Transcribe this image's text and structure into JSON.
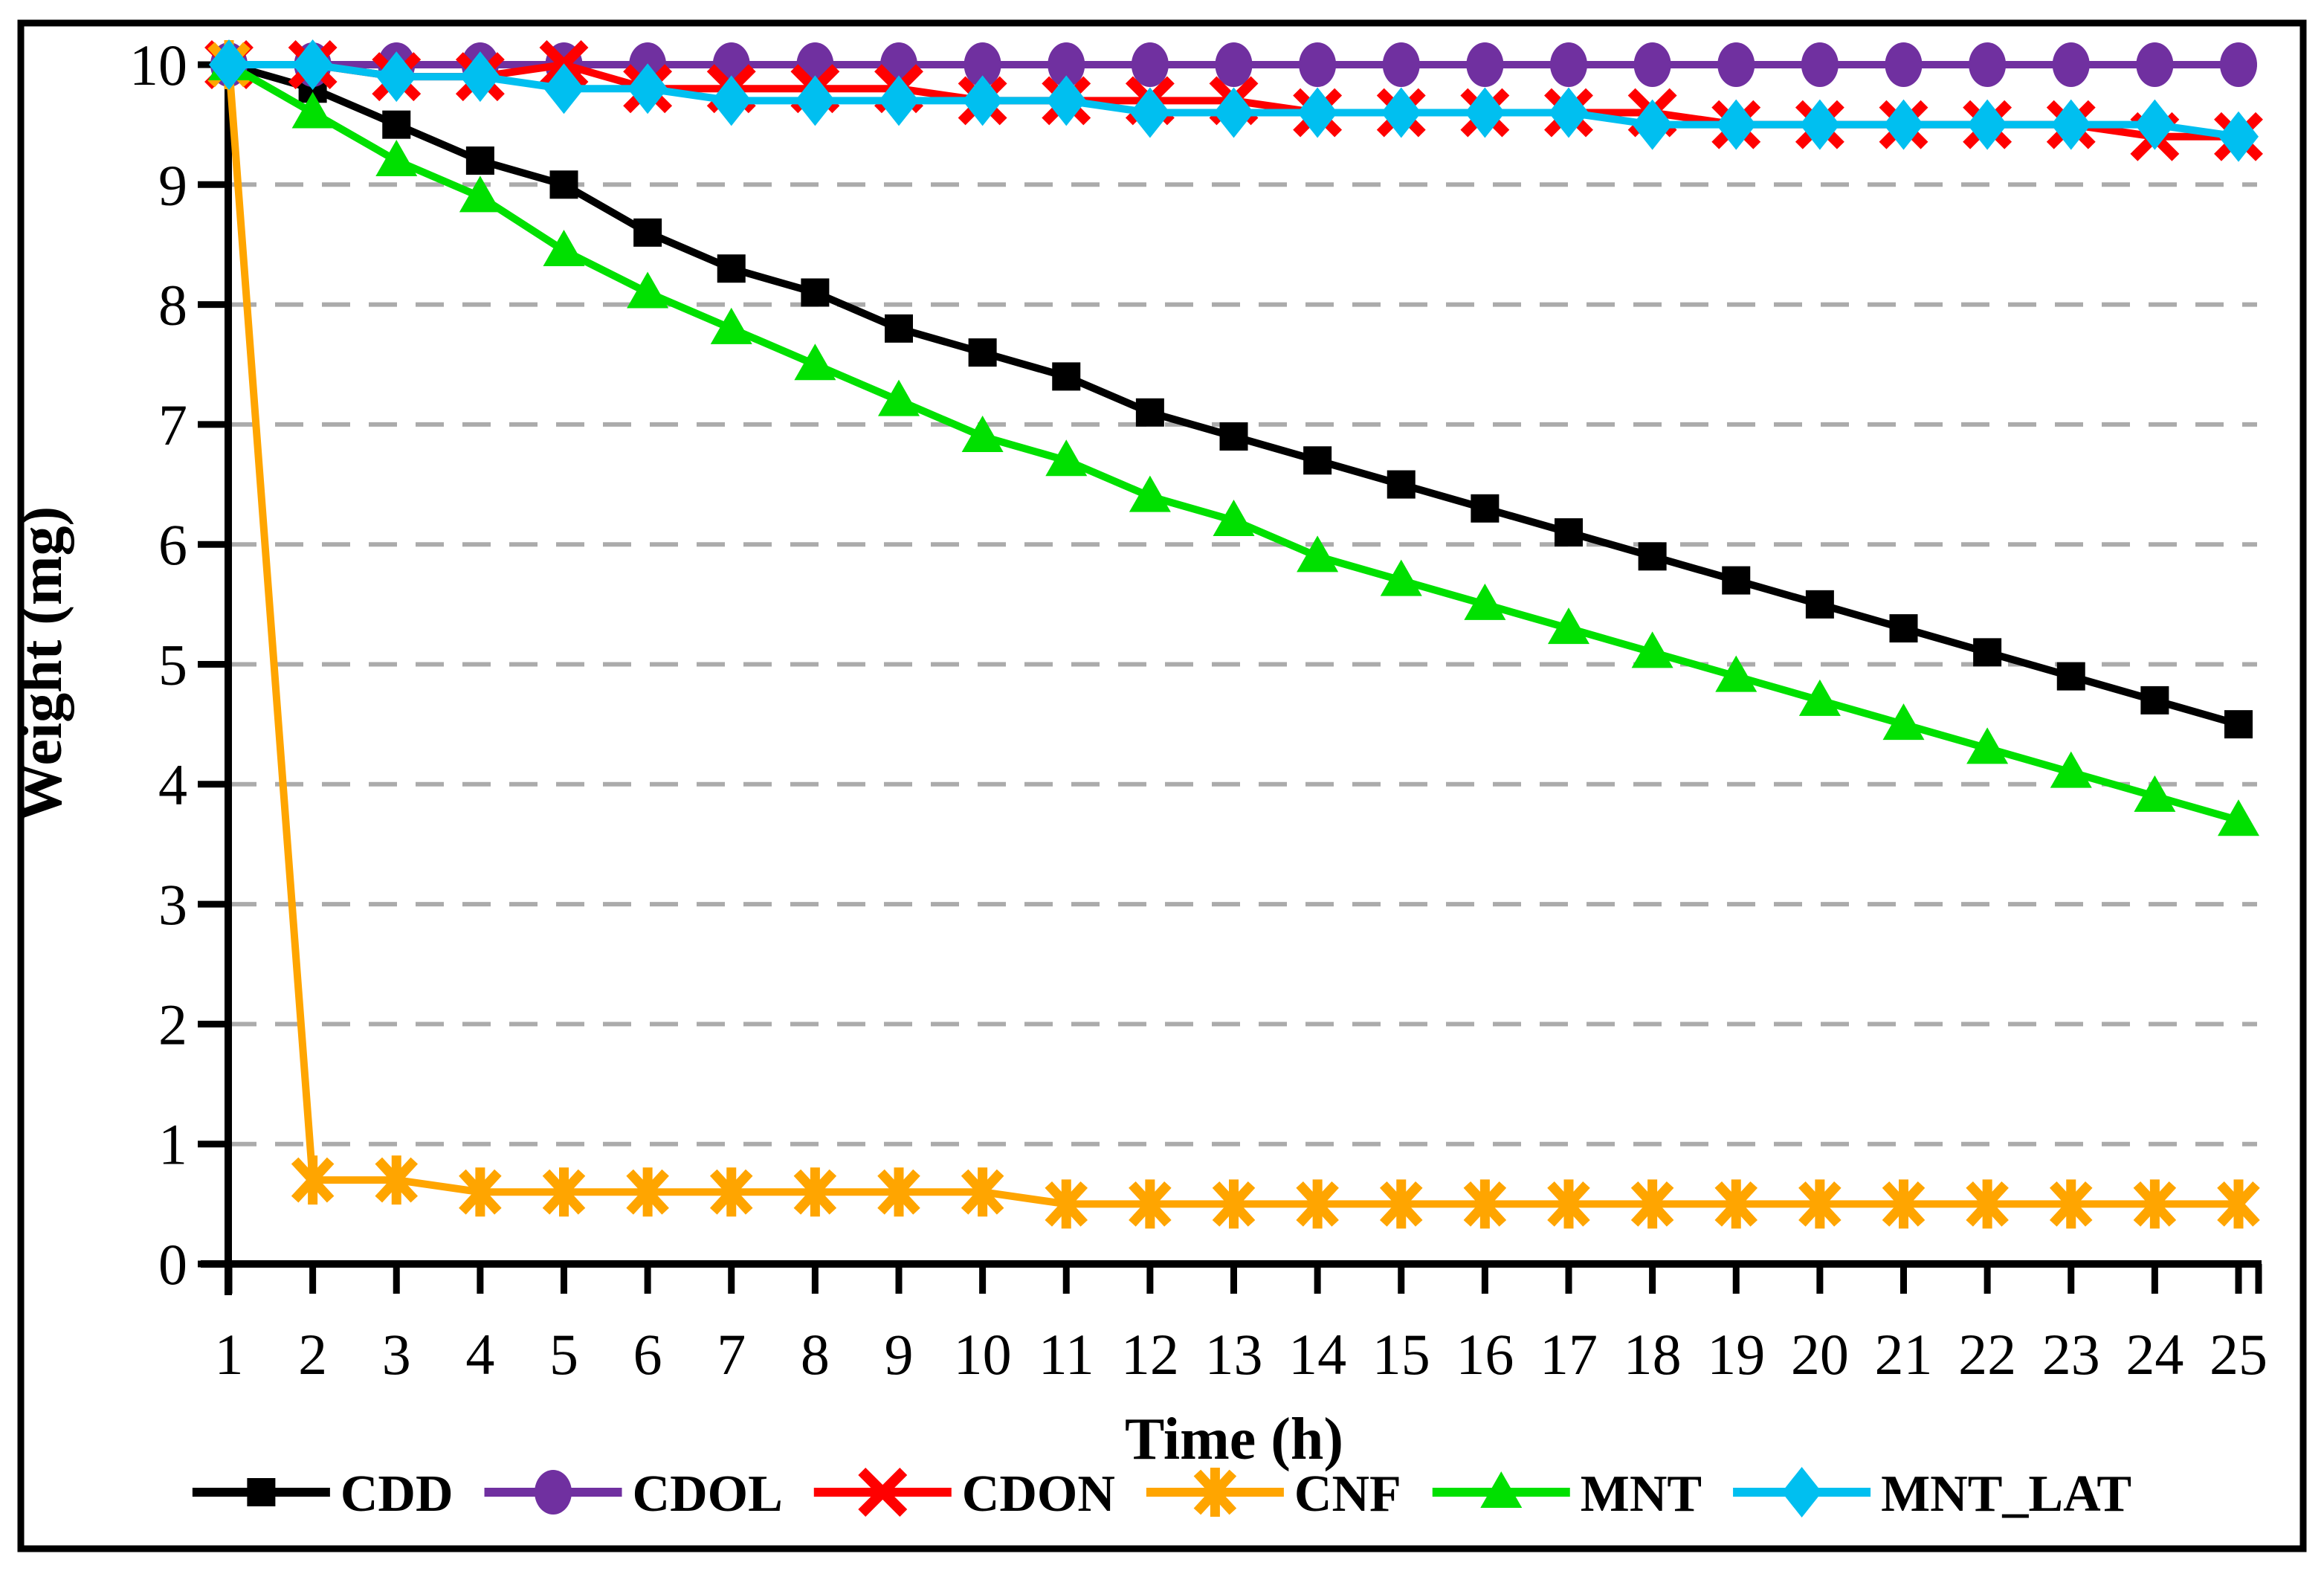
{
  "figure": {
    "background": "#FFFFFF",
    "border_color": "#000000",
    "axis_color": "#000000",
    "gridline_color": "#ABABAB"
  },
  "chart_data": {
    "type": "line",
    "title": "",
    "xlabel": "Time (h)",
    "ylabel": "Weight (mg)",
    "x": [
      1,
      2,
      3,
      4,
      5,
      6,
      7,
      8,
      9,
      10,
      11,
      12,
      13,
      14,
      15,
      16,
      17,
      18,
      19,
      20,
      21,
      22,
      23,
      24,
      25
    ],
    "xlim": [
      1,
      25
    ],
    "ylim": [
      0,
      10
    ],
    "y_ticks": [
      0,
      1,
      2,
      3,
      4,
      5,
      6,
      7,
      8,
      9,
      10
    ],
    "grid": "horizontal-dashed",
    "legend_position": "bottom",
    "series": [
      {
        "name": "CDD",
        "color": "#000000",
        "marker": "square",
        "values": [
          10,
          9.8,
          9.5,
          9.2,
          9.0,
          8.6,
          8.3,
          8.1,
          7.8,
          7.6,
          7.4,
          7.1,
          6.9,
          6.7,
          6.5,
          6.3,
          6.1,
          5.9,
          5.7,
          5.5,
          5.3,
          5.1,
          4.9,
          4.7,
          4.5
        ]
      },
      {
        "name": "CDOL",
        "color": "#7030A0",
        "marker": "circle",
        "values": [
          10,
          10,
          10,
          10,
          10,
          10,
          10,
          10,
          10,
          10,
          10,
          10,
          10,
          10,
          10,
          10,
          10,
          10,
          10,
          10,
          10,
          10,
          10,
          10,
          10
        ]
      },
      {
        "name": "CDON",
        "color": "#FF0000",
        "marker": "x",
        "values": [
          10,
          10,
          9.9,
          9.9,
          10,
          9.8,
          9.8,
          9.8,
          9.8,
          9.7,
          9.7,
          9.7,
          9.7,
          9.6,
          9.6,
          9.6,
          9.6,
          9.6,
          9.5,
          9.5,
          9.5,
          9.5,
          9.5,
          9.4,
          9.4
        ]
      },
      {
        "name": "CNF",
        "color": "#FFA500",
        "marker": "asterisk",
        "values": [
          10,
          0.7,
          0.7,
          0.6,
          0.6,
          0.6,
          0.6,
          0.6,
          0.6,
          0.6,
          0.5,
          0.5,
          0.5,
          0.5,
          0.5,
          0.5,
          0.5,
          0.5,
          0.5,
          0.5,
          0.5,
          0.5,
          0.5,
          0.5,
          0.5
        ]
      },
      {
        "name": "MNT",
        "color": "#00E000",
        "marker": "triangle",
        "values": [
          10,
          9.6,
          9.2,
          8.9,
          8.45,
          8.1,
          7.8,
          7.5,
          7.2,
          6.9,
          6.7,
          6.4,
          6.2,
          5.9,
          5.7,
          5.5,
          5.3,
          5.1,
          4.9,
          4.7,
          4.5,
          4.3,
          4.1,
          3.9,
          3.7
        ]
      },
      {
        "name": "MNT_LAT",
        "color": "#00BFF0",
        "marker": "diamond",
        "values": [
          10,
          10,
          9.9,
          9.9,
          9.8,
          9.8,
          9.7,
          9.7,
          9.7,
          9.7,
          9.7,
          9.6,
          9.6,
          9.6,
          9.6,
          9.6,
          9.6,
          9.5,
          9.5,
          9.5,
          9.5,
          9.5,
          9.5,
          9.5,
          9.4
        ]
      }
    ]
  }
}
